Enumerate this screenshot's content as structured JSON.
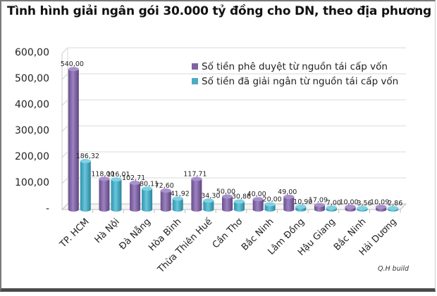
{
  "title": "Tình hình giải ngân gói 30.000 tỷ đồng cho DN, theo địa phương",
  "credit": "Q.H build",
  "legend": [
    {
      "label": "Số tiền phê duyệt từ nguồn tái cấp vốn",
      "color": "#8064a2"
    },
    {
      "label": "Số tiền đã giải ngân từ nguồn tái cấp vốn",
      "color": "#4bacc6"
    }
  ],
  "y_ticks": [
    "600,00",
    "500,00",
    "400,00",
    "300,00",
    "200,00",
    "100,00",
    "-"
  ],
  "chart_data": {
    "type": "bar",
    "title": "Tình hình giải ngân gói 30.000 tỷ đồng cho DN, theo địa phương",
    "xlabel": "",
    "ylabel": "",
    "ylim": [
      0,
      600
    ],
    "grid": true,
    "legend_position": "top-right",
    "categories": [
      "TP. HCM",
      "Hà Nội",
      "Đà Nẵng",
      "Hòa Bình",
      "Thừa Thiên Huế",
      "Cần Thơ",
      "Bắc Ninh",
      "Lâm Đồng",
      "Hậu Giang",
      "Bắc Ninh",
      "Hải Dương"
    ],
    "series": [
      {
        "name": "Số tiền phê duyệt từ nguồn tái cấp vốn",
        "color": "#8064a2",
        "values": [
          540.0,
          118.0,
          102.71,
          72.6,
          117.71,
          50.0,
          40.0,
          49.0,
          17.09,
          10.0,
          10.09
        ],
        "labels": [
          "540,00",
          "118,00",
          "102,71",
          "72,60",
          "117,71",
          "50,00",
          "40,00",
          "49,00",
          "17,09",
          "10,00",
          "10,09"
        ]
      },
      {
        "name": "Số tiền đã giải ngân từ nguồn tái cấp vốn",
        "color": "#4bacc6",
        "values": [
          186.32,
          116.01,
          80.11,
          41.92,
          34.3,
          30.86,
          20.0,
          10.9,
          7.0,
          3.56,
          2.86
        ],
        "labels": [
          "186,32",
          "116,01",
          "80,11",
          "41,92",
          "34,30",
          "30,86",
          "20,00",
          "10,90",
          "7,00",
          "3,56",
          "2,86"
        ]
      }
    ]
  }
}
